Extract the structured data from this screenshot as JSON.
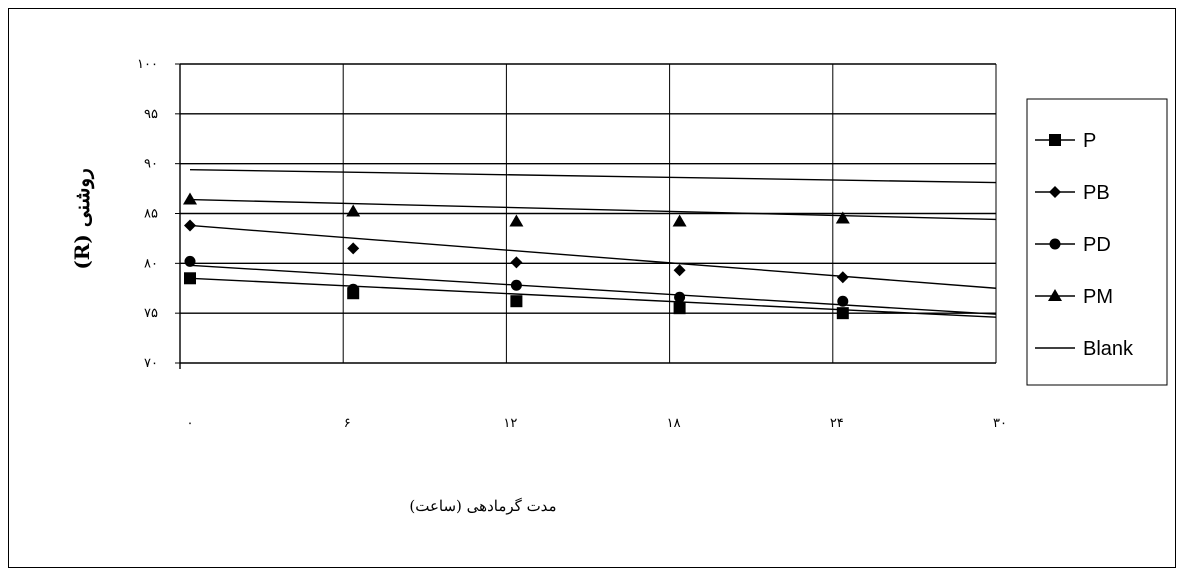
{
  "chart_data": {
    "type": "line",
    "title": "",
    "xlabel": "مدت گرمادهی (ساعت)",
    "ylabel": "روشنی (R)",
    "x_ticks": [
      "۰",
      "۶",
      "۱۲",
      "۱۸",
      "۲۴",
      "۳۰"
    ],
    "y_ticks": [
      "۷۰",
      "۷۵",
      "۸۰",
      "۸۵",
      "۹۰",
      "۹۵",
      "۱۰۰"
    ],
    "x_categories": [
      0,
      6,
      12,
      18,
      24,
      30
    ],
    "xlim": [
      0,
      30
    ],
    "ylim": [
      70,
      100
    ],
    "grid": true,
    "legend_position": "right",
    "series": [
      {
        "name": "P",
        "marker": "square",
        "x": [
          0,
          6,
          12,
          18,
          24
        ],
        "values": [
          78.5,
          77.0,
          76.2,
          75.5,
          75.0
        ],
        "trend": [
          78.5,
          74.6
        ]
      },
      {
        "name": "PB",
        "marker": "diamond",
        "x": [
          0,
          6,
          12,
          18,
          24
        ],
        "values": [
          83.8,
          81.5,
          80.1,
          79.3,
          78.6
        ],
        "trend": [
          83.8,
          77.5
        ]
      },
      {
        "name": "PD",
        "marker": "circle",
        "x": [
          0,
          6,
          12,
          18,
          24
        ],
        "values": [
          80.2,
          77.4,
          77.8,
          76.6,
          76.2
        ],
        "trend": [
          79.8,
          74.9
        ]
      },
      {
        "name": "PM",
        "marker": "triangle",
        "x": [
          0,
          6,
          12,
          18,
          24
        ],
        "values": [
          86.4,
          85.2,
          84.2,
          84.2,
          84.5
        ],
        "trend": [
          86.4,
          84.4
        ]
      },
      {
        "name": "Blank",
        "marker": "none",
        "x": [],
        "values": [],
        "trend": [
          89.4,
          88.1
        ]
      }
    ]
  }
}
